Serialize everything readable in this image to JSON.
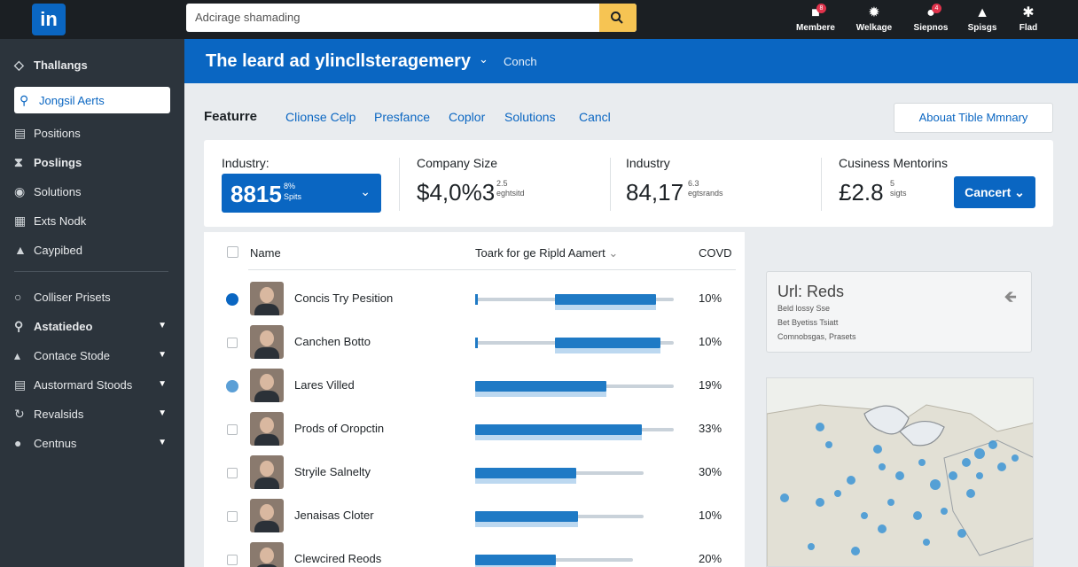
{
  "topbar": {
    "logo": "in",
    "search_placeholder": "Adcirage shamading",
    "nav": [
      {
        "label": "Membere",
        "icon": "members-icon",
        "badge": "8"
      },
      {
        "label": "Welkage",
        "icon": "network-icon",
        "badge": ""
      },
      {
        "label": "Siepnos",
        "icon": "messages-icon",
        "badge": "4"
      },
      {
        "label": "Spisgs",
        "icon": "profile-icon",
        "badge": ""
      },
      {
        "label": "Flad",
        "icon": "grid-icon",
        "badge": ""
      }
    ]
  },
  "sidebar": {
    "items": [
      {
        "label": "Thallangs",
        "icon": "diamond-icon"
      },
      {
        "label": "Jongsil Aerts",
        "icon": "user-icon"
      },
      {
        "label": "Positions",
        "icon": "list-icon"
      },
      {
        "label": "Poslings",
        "icon": "funnel-icon"
      },
      {
        "label": "Solutions",
        "icon": "target-icon"
      },
      {
        "label": "Exts Nodk",
        "icon": "table-icon"
      },
      {
        "label": "Caypibed",
        "icon": "home-icon"
      },
      {
        "label": "Colliser Prisets",
        "icon": "chat-icon"
      },
      {
        "label": "Astatiedeo",
        "icon": "search-icon"
      },
      {
        "label": "Contace Stode",
        "icon": "chart-icon"
      },
      {
        "label": "Austormard Stoods",
        "icon": "doc-icon"
      },
      {
        "label": "Revalsids",
        "icon": "refresh-icon"
      },
      {
        "label": "Centnus",
        "icon": "person-icon"
      }
    ]
  },
  "banner": {
    "title": "The leard ad ylincllsteragemery",
    "sub": "Conch"
  },
  "tabs": [
    "Featurre",
    "Clionse Celp",
    "Presfance",
    "Coplor",
    "Solutions",
    "Cancl"
  ],
  "summary_button": "Abouat Tible Mmnary",
  "filters": {
    "industry": {
      "label": "Industry:",
      "value": "8815",
      "sub1": "8%",
      "sub2": "Spits"
    },
    "company": {
      "label": "Company Size",
      "value": "$4,0%3",
      "sub1": "2.5",
      "sub2": "eghtsitd"
    },
    "industry2": {
      "label": "Industry",
      "value": "84,17",
      "sub1": "6.3",
      "sub2": "egtsrands"
    },
    "business": {
      "label": "Cusiness Mentorins",
      "value": "£2.8",
      "sub1": "5",
      "sub2": "sigts"
    },
    "cancel": "Cancert"
  },
  "table": {
    "headers": {
      "name": "Name",
      "bar": "Toark for ge Ripld Aamert",
      "pct": "COVD"
    },
    "rows": [
      {
        "name": "Concis Try Pesition",
        "pct": "10%",
        "state": "selected",
        "bar_start": 0.4,
        "bar_end": 0.91
      },
      {
        "name": "Canchen Botto",
        "pct": "10%",
        "state": "unchecked",
        "bar_start": 0.4,
        "bar_end": 0.93
      },
      {
        "name": "Lares Villed",
        "pct": "19%",
        "state": "selected-light",
        "bar_start": 0.0,
        "bar_end": 0.66
      },
      {
        "name": "Prods of Oropctin",
        "pct": "33%",
        "state": "unchecked",
        "bar_start": 0.0,
        "bar_end": 0.84
      },
      {
        "name": "Stryile Salnelty",
        "pct": "30%",
        "state": "unchecked",
        "bar_start": 0.0,
        "bar_end": 0.6
      },
      {
        "name": "Jenaisas Cloter",
        "pct": "10%",
        "state": "unchecked",
        "bar_start": 0.0,
        "bar_end": 0.61
      },
      {
        "name": "Clewcired Reods",
        "pct": "20%",
        "state": "unchecked",
        "bar_start": 0.0,
        "bar_end": 0.51
      }
    ]
  },
  "reds_card": {
    "title": "Url: Reds",
    "lines": [
      "Beld lossy Sse",
      "Bet Byetiss Tsiatt",
      "Comnobsgas, Prasets"
    ]
  },
  "colors": {
    "accent": "#0a66c2",
    "sidebar": "#2c343c",
    "topbar": "#1b1f23"
  }
}
